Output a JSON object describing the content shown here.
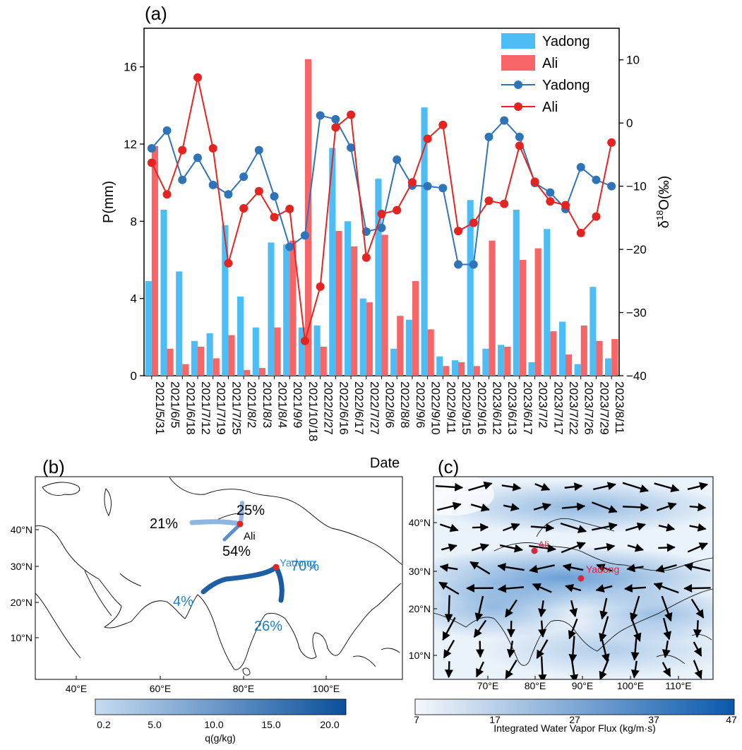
{
  "panel_a": {
    "label": "(a)",
    "chart_data": {
      "type": "bar+line",
      "xlabel": "Date",
      "ylabel_left": "P(mm)",
      "ylabel_right_prefix": "δ",
      "ylabel_right_sup": "18",
      "ylabel_right_suffix": "O(‰)",
      "ylim_left": [
        0,
        18
      ],
      "ylim_right": [
        -40,
        15
      ],
      "yticks_left": [
        "0",
        "4",
        "8",
        "12",
        "16"
      ],
      "yticks_right": [
        "−40",
        "−30",
        "−20",
        "−10",
        "0",
        "10"
      ],
      "legend_position": "top-right",
      "categories": [
        "2021/5/31",
        "2021/6/5",
        "2021/6/18",
        "2021/7/12",
        "2021/7/19",
        "2021/7/25",
        "2021/8/2",
        "2021/8/3",
        "2021/8/4",
        "2021/9/9",
        "2021/10/18",
        "2022/2/27",
        "2022/6/16",
        "2022/6/17",
        "2022/7/27",
        "2022/8/6",
        "2022/8/8",
        "2022/9/6",
        "2022/9/10",
        "2022/9/11",
        "2022/9/15",
        "2022/9/16",
        "2023/6/12",
        "2023/6/13",
        "2023/6/17",
        "2023/7/2",
        "2023/7/17",
        "2023/7/22",
        "2023/7/26",
        "2023/7/29",
        "2023/8/11"
      ],
      "bar_series": [
        {
          "name": "Yadong",
          "color": "#4dbef5",
          "values": [
            4.9,
            8.6,
            5.4,
            1.8,
            2.2,
            7.8,
            4.1,
            2.5,
            6.9,
            6.8,
            2.5,
            2.6,
            11.8,
            8.0,
            4.0,
            10.2,
            1.4,
            2.9,
            13.9,
            1.0,
            0.8,
            9.1,
            1.4,
            1.6,
            8.6,
            0.7,
            7.6,
            2.8,
            0.6,
            4.6,
            0.9
          ]
        },
        {
          "name": "Ali",
          "color": "#f76566",
          "values": [
            11.9,
            1.4,
            0.6,
            1.5,
            0.9,
            2.1,
            0.3,
            0.4,
            2.5,
            7.0,
            16.4,
            1.5,
            7.5,
            6.7,
            3.8,
            7.3,
            3.1,
            4.9,
            2.4,
            0.5,
            0.7,
            0.5,
            7.0,
            1.5,
            6.0,
            6.6,
            2.3,
            1.1,
            2.6,
            1.8,
            1.9
          ]
        }
      ],
      "line_series": [
        {
          "name": "Yadong",
          "color": "#2f74b8",
          "values": [
            -4.0,
            -1.2,
            -9.0,
            -5.5,
            -9.8,
            -11.3,
            -8.5,
            -4.3,
            -11.6,
            -19.6,
            -17.8,
            1.2,
            0.6,
            -3.9,
            -17.2,
            -16.6,
            -5.8,
            -9.9,
            -10.0,
            -10.3,
            -22.4,
            -22.4,
            -2.2,
            0.4,
            -2.2,
            -9.5,
            -11.0,
            -13.6,
            -7.0,
            -9.0,
            -10.0
          ]
        },
        {
          "name": "Ali",
          "color": "#e52421",
          "values": [
            -6.3,
            -11.3,
            -4.3,
            7.2,
            -4.0,
            -22.2,
            -13.5,
            -10.8,
            -14.9,
            -13.6,
            -34.5,
            -25.9,
            -0.7,
            1.3,
            -21.3,
            -14.4,
            -13.8,
            -9.4,
            -2.5,
            -0.3,
            -17.1,
            -15.8,
            -12.3,
            -12.8,
            -3.6,
            -9.3,
            -12.4,
            -13.0,
            -17.4,
            -14.8,
            -3.1
          ]
        }
      ]
    }
  },
  "panel_b": {
    "label": "(b)",
    "lat_ticks": [
      "10°N",
      "20°N",
      "30°N",
      "40°N"
    ],
    "lon_ticks": [
      "40°E",
      "60°E",
      "80°E",
      "100°E"
    ],
    "stations": [
      {
        "name": "Ali",
        "color": "#000000"
      },
      {
        "name": "Yadong",
        "color": "#3b8fd0"
      }
    ],
    "percentages": [
      {
        "text": "25%",
        "color": "#000000"
      },
      {
        "text": "21%",
        "color": "#000000"
      },
      {
        "text": "54%",
        "color": "#000000"
      },
      {
        "text": "70%",
        "color": "#1f7fc4"
      },
      {
        "text": "4%",
        "color": "#1f7fc4"
      },
      {
        "text": "26%",
        "color": "#1f7fc4"
      }
    ],
    "colorbar": {
      "title": "q(g/kg)",
      "ticks": [
        "0.2",
        "5.0",
        "10.0",
        "15.0",
        "20.0"
      ],
      "color_low": "#c6dcf2",
      "color_high": "#0b4f9c"
    }
  },
  "panel_c": {
    "label": "(c)",
    "lat_ticks": [
      "10°N",
      "20°N",
      "30°N",
      "40°N"
    ],
    "lon_ticks": [
      "70°E",
      "80°E",
      "90°E",
      "100°E",
      "110°E"
    ],
    "stations": [
      {
        "name": "Ali",
        "color": "#d7263d"
      },
      {
        "name": "Yadong",
        "color": "#d7263d"
      }
    ],
    "colorbar": {
      "title": "Integrated Water Vapor Flux (kg/m·s)",
      "ticks": [
        "7",
        "17",
        "27",
        "37",
        "47"
      ],
      "color_low": "#f4f8fc",
      "color_high": "#0a58ad"
    }
  }
}
